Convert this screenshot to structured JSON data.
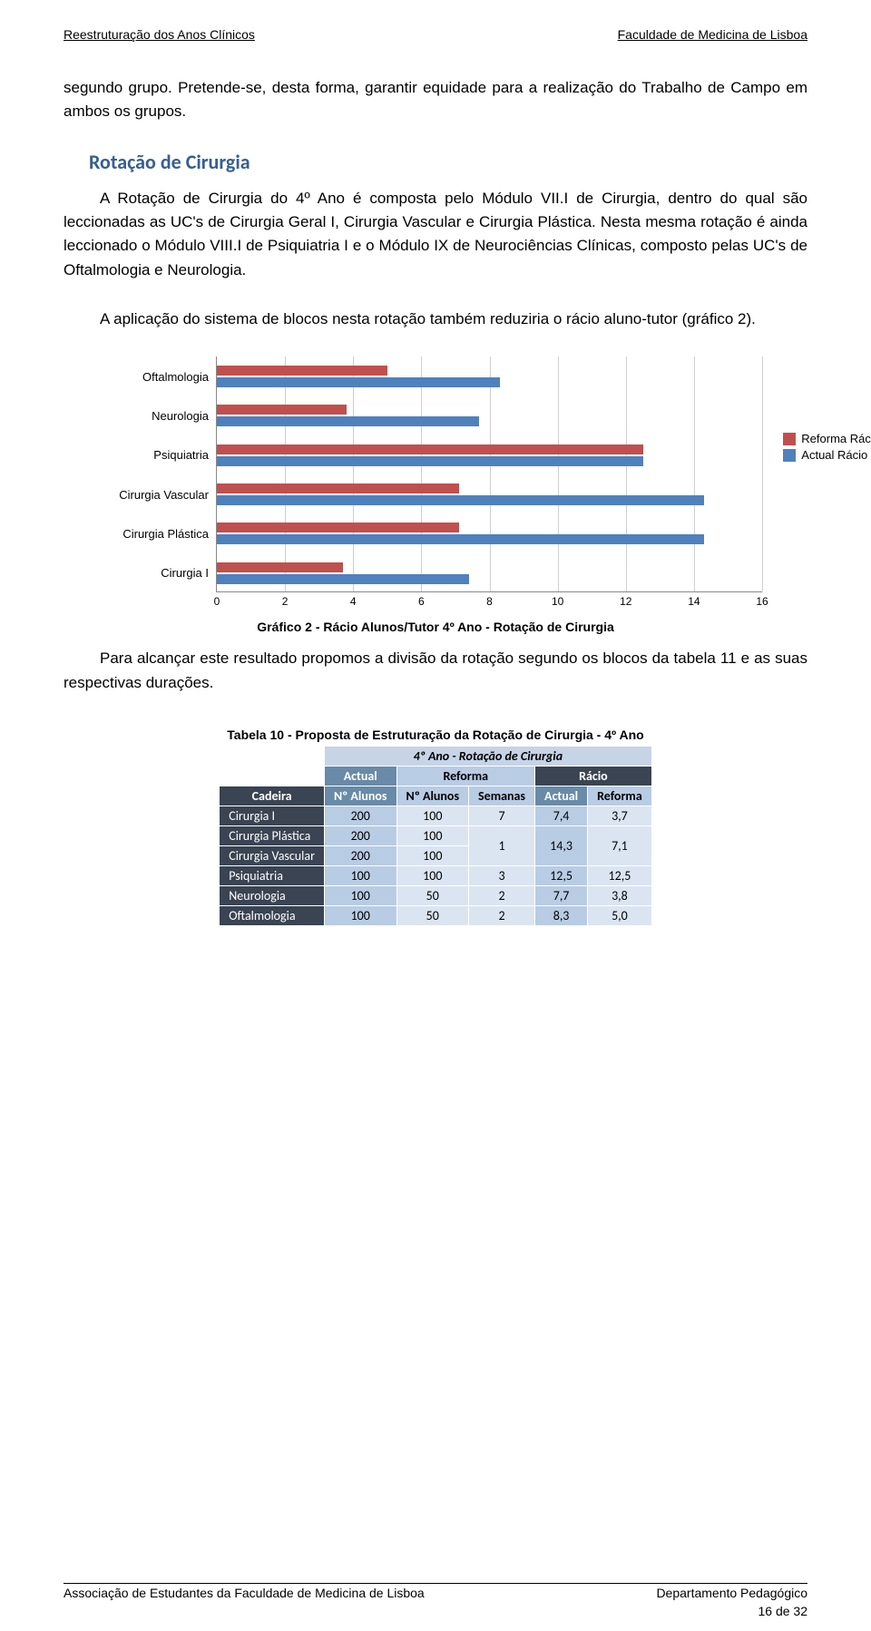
{
  "header": {
    "left": "Reestruturação dos Anos Clínicos",
    "right": "Faculdade de Medicina de Lisboa"
  },
  "paragraphs": {
    "p1": "segundo grupo. Pretende-se, desta forma, garantir equidade para a realização do Trabalho de Campo em ambos os grupos.",
    "section_title": "Rotação de Cirurgia",
    "p2": "A Rotação de Cirurgia do 4º Ano é composta pelo Módulo VII.I de Cirurgia, dentro do qual são leccionadas as UC's de Cirurgia Geral I, Cirurgia Vascular e Cirurgia Plástica. Nesta mesma rotação é ainda leccionado o Módulo VIII.I de Psiquiatria I e o Módulo IX de Neurociências Clínicas, composto pelas UC's de Oftalmologia e Neurologia.",
    "p3": "A aplicação do sistema de blocos nesta rotação também reduziria o rácio aluno-tutor (gráfico 2).",
    "chart_caption": "Gráfico 2 - Rácio Alunos/Tutor 4º Ano - Rotação de Cirurgia",
    "p4": "Para alcançar este resultado propomos a divisão da rotação segundo os blocos da tabela 11 e as suas respectivas durações.",
    "table_title": "Tabela 10 - Proposta de Estruturação da Rotação de Cirurgia - 4º Ano"
  },
  "chart": {
    "type": "bar-horizontal-grouped",
    "xmax": 16,
    "xtick_step": 2,
    "categories": [
      "Oftalmologia",
      "Neurologia",
      "Psiquiatria",
      "Cirurgia Vascular",
      "Cirurgia Plástica",
      "Cirurgia I"
    ],
    "series": [
      {
        "name": "Reforma Rácio",
        "color": "#c0504d",
        "values": [
          5.0,
          3.8,
          12.5,
          7.1,
          7.1,
          3.7
        ]
      },
      {
        "name": "Actual Rácio",
        "color": "#4f81bd",
        "values": [
          8.3,
          7.7,
          12.5,
          14.3,
          14.3,
          7.4
        ]
      }
    ],
    "gridline_color": "#cfcfcf",
    "axis_color": "#888888",
    "label_fontsize": 13
  },
  "table": {
    "super_header": "4º Ano - Rotação de Cirurgia",
    "col_groups": [
      "Actual",
      "Reforma",
      "Rácio"
    ],
    "header_row": [
      "Cadeira",
      "Nº Alunos",
      "Nº Alunos",
      "Semanas",
      "Actual",
      "Reforma"
    ],
    "rows": [
      {
        "label": "Cirurgia I",
        "actual_n": "200",
        "reforma_n": "100",
        "sem": "7",
        "ra": "7,4",
        "rr": "3,7"
      },
      {
        "label": "Cirurgia Plástica",
        "actual_n": "200",
        "reforma_n": "100",
        "sem": "1_merge_top",
        "ra": "14,3",
        "rr": "7,1"
      },
      {
        "label": "Cirurgia Vascular",
        "actual_n": "200",
        "reforma_n": "100",
        "sem": "1_merge_bot",
        "ra": "",
        "rr": ""
      },
      {
        "label": "Psiquiatria",
        "actual_n": "100",
        "reforma_n": "100",
        "sem": "3",
        "ra": "12,5",
        "rr": "12,5"
      },
      {
        "label": "Neurologia",
        "actual_n": "100",
        "reforma_n": "50",
        "sem": "2",
        "ra": "7,7",
        "rr": "3,8"
      },
      {
        "label": "Oftalmologia",
        "actual_n": "100",
        "reforma_n": "50",
        "sem": "2",
        "ra": "8,3",
        "rr": "5,0"
      }
    ]
  },
  "footer": {
    "left": "Associação de Estudantes da Faculdade de Medicina de Lisboa",
    "right": "Departamento Pedagógico",
    "page": "16 de 32"
  }
}
